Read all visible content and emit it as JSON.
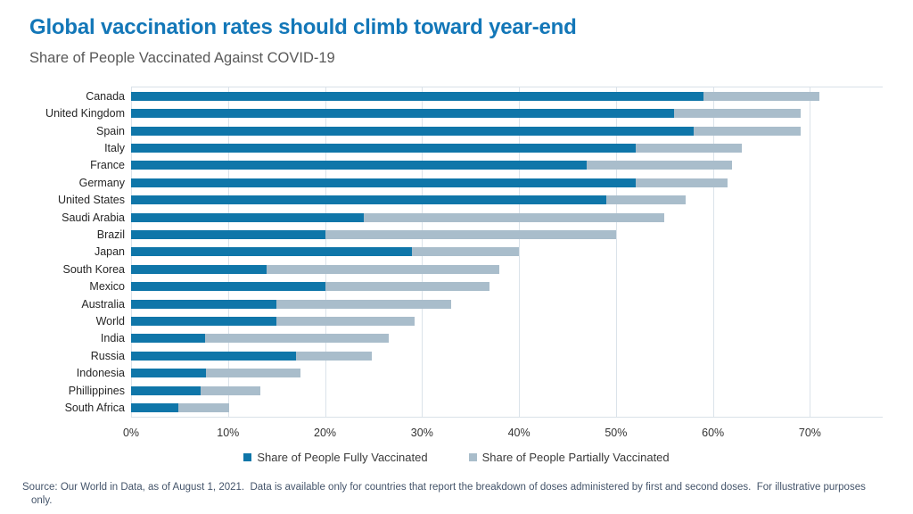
{
  "header": {
    "title": "Global vaccination rates should climb toward year-end",
    "subtitle": "Share of People Vaccinated Against COVID-19"
  },
  "chart_data": {
    "type": "bar",
    "orientation": "horizontal",
    "stacked": true,
    "title": "Global vaccination rates should climb toward year-end",
    "subtitle": "Share of People Vaccinated Against COVID-19",
    "xlabel": "",
    "ylabel": "",
    "grid": true,
    "legend_position": "bottom",
    "axis": {
      "min": 0,
      "max": 77.5,
      "ticks": [
        {
          "value": 0,
          "label": "0%"
        },
        {
          "value": 10,
          "label": "10%"
        },
        {
          "value": 20,
          "label": "20%"
        },
        {
          "value": 30,
          "label": "30%"
        },
        {
          "value": 40,
          "label": "40%"
        },
        {
          "value": 50,
          "label": "50%"
        },
        {
          "value": 60,
          "label": "60%"
        },
        {
          "value": 70,
          "label": "70%"
        }
      ]
    },
    "categories": [
      "Canada",
      "United Kingdom",
      "Spain",
      "Italy",
      "France",
      "Germany",
      "United States",
      "Saudi Arabia",
      "Brazil",
      "Japan",
      "South Korea",
      "Mexico",
      "Australia",
      "World",
      "India",
      "Russia",
      "Indonesia",
      "Phillippines",
      "South Africa"
    ],
    "series": [
      {
        "name": "Share of People Fully Vaccinated",
        "color": "#0f76a9",
        "values": [
          59,
          56,
          58,
          52,
          47,
          52,
          49,
          24,
          20,
          29,
          14,
          20,
          15,
          15,
          7.6,
          17,
          7.7,
          7.2,
          4.9
        ]
      },
      {
        "name": "Share of People Partially Vaccinated",
        "color": "#a9bdcb",
        "values": [
          12,
          13,
          11,
          11,
          15,
          9.5,
          8.2,
          31,
          30,
          11,
          24,
          17,
          18,
          14.2,
          19,
          7.8,
          9.8,
          6.1,
          5.2
        ]
      }
    ],
    "totals": [
      71,
      69,
      69,
      63,
      62,
      61.5,
      57.2,
      55,
      50,
      40,
      38,
      37,
      33,
      29.2,
      26.6,
      24.8,
      17.5,
      13.3,
      10.1
    ]
  },
  "footer": {
    "source_line1": "Source: Our World in Data, as of August 1, 2021.  Data is available only for countries that report the breakdown of doses administered by first and second doses.  For illustrative purposes",
    "source_line2": "only."
  }
}
